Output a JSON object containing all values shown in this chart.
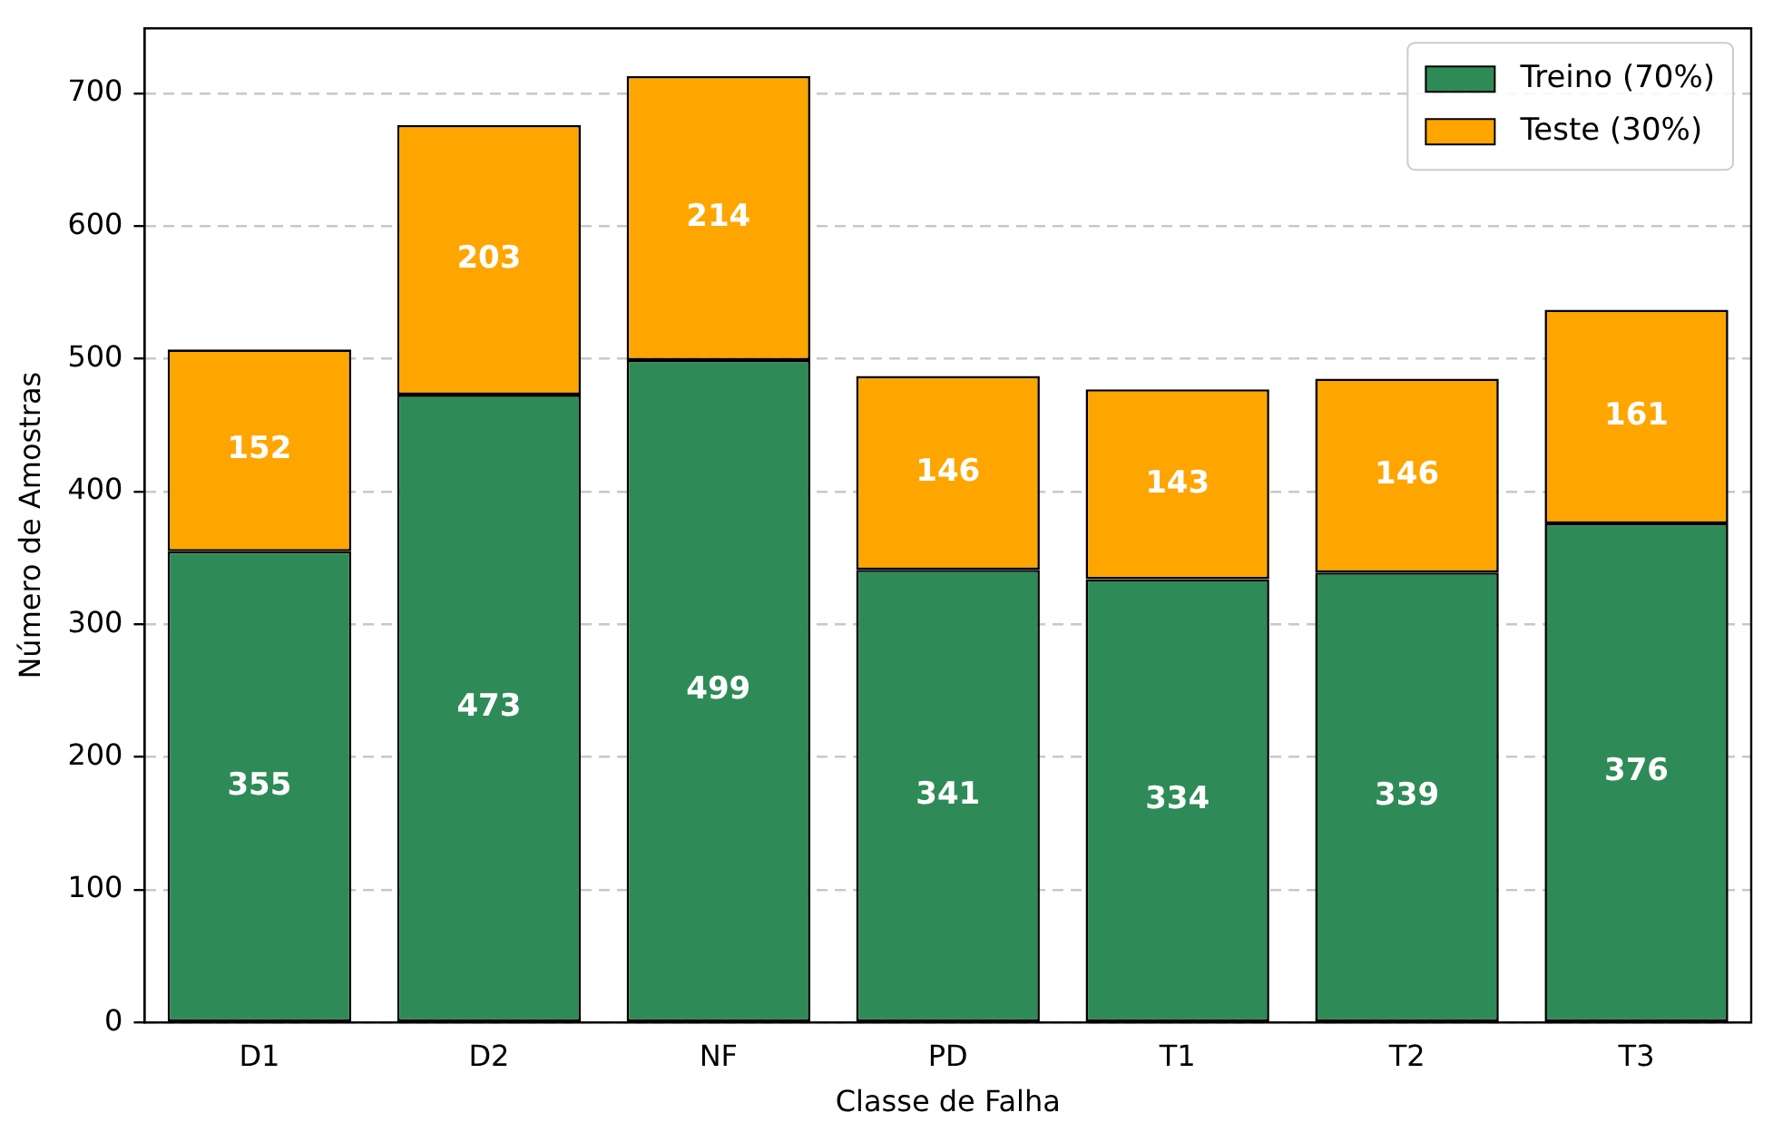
{
  "chart_data": {
    "type": "bar",
    "stacked": true,
    "xlabel": "Classe de Falha",
    "ylabel": "Número de Amostras",
    "categories": [
      "D1",
      "D2",
      "NF",
      "PD",
      "T1",
      "T2",
      "T3"
    ],
    "series": [
      {
        "name": "Treino (70%)",
        "color": "#2e8b57",
        "values": [
          355,
          473,
          499,
          341,
          334,
          339,
          376
        ]
      },
      {
        "name": "Teste (30%)",
        "color": "#ffa500",
        "values": [
          152,
          203,
          214,
          146,
          143,
          146,
          161
        ]
      }
    ],
    "ylim": [
      0,
      749
    ],
    "yticks": [
      0,
      100,
      200,
      300,
      400,
      500,
      600,
      700
    ],
    "grid": "y",
    "legend": "top right",
    "data_labels": true
  }
}
